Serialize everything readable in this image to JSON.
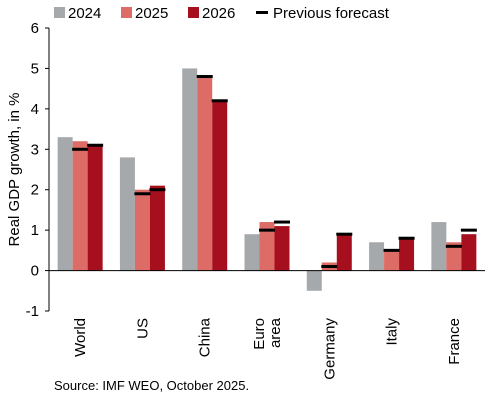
{
  "chart_data": {
    "type": "bar",
    "title": "",
    "xlabel": "",
    "ylabel": "Real GDP growth, in %",
    "ylim": [
      -1,
      6
    ],
    "yticks": [
      "-1",
      "0",
      "1",
      "2",
      "3",
      "4",
      "5",
      "6"
    ],
    "grid": false,
    "legend_position": "top",
    "categories": [
      [
        "World"
      ],
      [
        "US"
      ],
      [
        "China"
      ],
      [
        "Euro",
        "area"
      ],
      [
        "Germany"
      ],
      [
        "Italy"
      ],
      [
        "France"
      ]
    ],
    "series": [
      {
        "name": "2024",
        "color": "#a6a9ac",
        "values": [
          3.3,
          2.8,
          5.0,
          0.9,
          -0.5,
          0.7,
          1.2
        ]
      },
      {
        "name": "2025",
        "color": "#dd6b66",
        "values": [
          3.2,
          2.0,
          4.8,
          1.2,
          0.2,
          0.5,
          0.7
        ]
      },
      {
        "name": "2026",
        "color": "#a50f1e",
        "values": [
          3.1,
          2.1,
          4.2,
          1.1,
          0.9,
          0.8,
          0.9
        ]
      }
    ],
    "previous_forecast": {
      "name": "Previous forecast",
      "color": "#000000",
      "series": [
        "2025",
        "2026"
      ],
      "values": [
        [
          3.0,
          3.1
        ],
        [
          1.9,
          2.0
        ],
        [
          4.8,
          4.2
        ],
        [
          1.0,
          1.2
        ],
        [
          0.1,
          0.9
        ],
        [
          0.5,
          0.8
        ],
        [
          0.6,
          1.0
        ]
      ]
    }
  },
  "source": "Source: IMF WEO, October 2025."
}
